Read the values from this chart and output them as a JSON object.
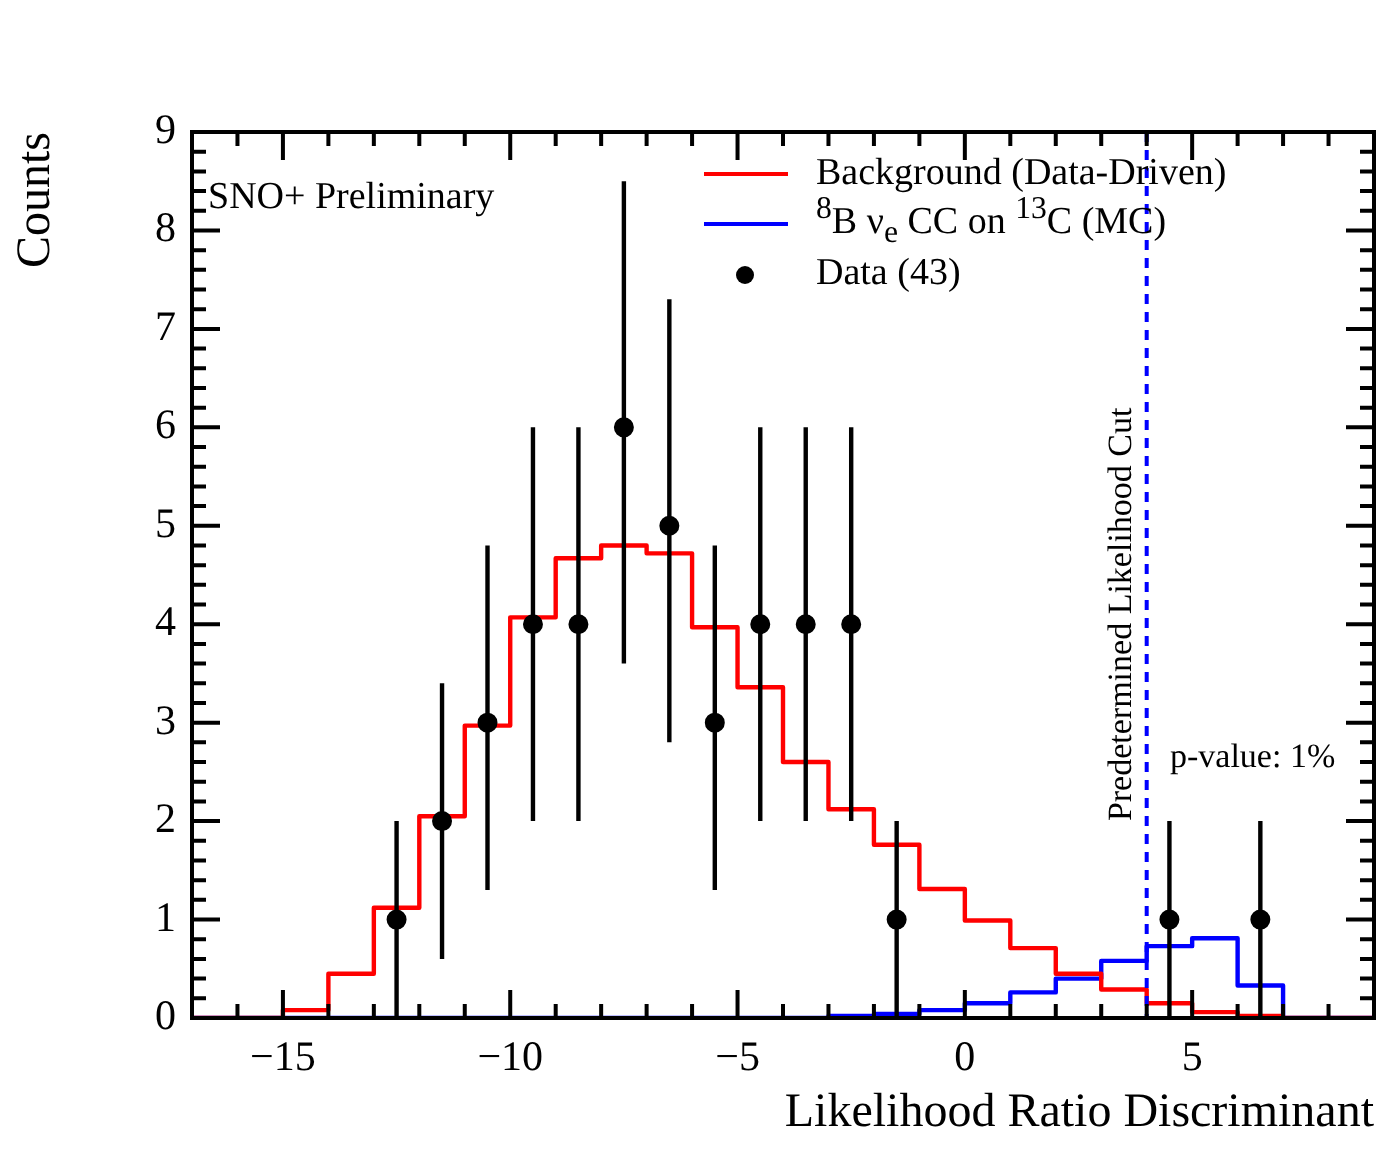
{
  "chart_data": {
    "type": "histogram",
    "xlabel": "Likelihood Ratio Discriminant",
    "ylabel": "Counts",
    "bins": [
      -17,
      -16,
      -15,
      -14,
      -13,
      -12,
      -11,
      -10,
      -9,
      -8,
      -7,
      -6,
      -5,
      -4,
      -3,
      -2,
      -1,
      0,
      1,
      2,
      3,
      4,
      5,
      6,
      7,
      8,
      9
    ],
    "series": [
      {
        "name": "Background (Data-Driven)",
        "color": "#ff0000",
        "values": [
          0,
          0,
          0.08,
          0.45,
          1.12,
          2.05,
          2.97,
          4.07,
          4.67,
          4.8,
          4.72,
          3.97,
          3.36,
          2.6,
          2.12,
          1.76,
          1.31,
          0.99,
          0.71,
          0.45,
          0.29,
          0.15,
          0.06,
          0.02,
          0,
          0
        ]
      },
      {
        "name": "$^{8}$B ν$_{e}$ CC on $^{13}$C (MC)",
        "color": "#0000ff",
        "values": [
          0,
          0,
          0,
          0,
          0,
          0,
          0,
          0,
          0,
          0,
          0,
          0,
          0,
          0,
          0.02,
          0.04,
          0.08,
          0.15,
          0.26,
          0.4,
          0.58,
          0.73,
          0.81,
          0.33,
          0,
          0
        ]
      },
      {
        "name": "Data (43)",
        "type": "scatter",
        "color": "#000000",
        "x": [
          -12.5,
          -11.5,
          -10.5,
          -9.5,
          -8.5,
          -7.5,
          -6.5,
          -5.5,
          -4.5,
          -3.5,
          -2.5,
          -1.5,
          4.5,
          6.5
        ],
        "values": [
          1,
          2,
          3,
          4,
          4,
          6,
          5,
          3,
          4,
          4,
          4,
          1,
          1,
          1
        ],
        "errors": [
          [
            0,
            2
          ],
          [
            0.6,
            3.4
          ],
          [
            1.3,
            4.8
          ],
          [
            2,
            6
          ],
          [
            2,
            6
          ],
          [
            3.6,
            8.5
          ],
          [
            2.8,
            7.3
          ],
          [
            1.3,
            4.8
          ],
          [
            2,
            6
          ],
          [
            2,
            6
          ],
          [
            2,
            6
          ],
          [
            0,
            2
          ],
          [
            0,
            2
          ],
          [
            0,
            2
          ]
        ]
      }
    ],
    "xlim": [
      -17,
      9
    ],
    "xticks": [
      {
        "value": -17,
        "label": null
      },
      {
        "value": -16,
        "label": null
      },
      -15,
      {
        "value": -14,
        "label": null
      },
      {
        "value": -13,
        "label": null
      },
      {
        "value": -12,
        "label": null
      },
      {
        "value": -11,
        "label": null
      },
      -10,
      {
        "value": -9,
        "label": null
      },
      {
        "value": -8,
        "label": null
      },
      {
        "value": -7,
        "label": null
      },
      {
        "value": -6,
        "label": null
      },
      -5,
      {
        "value": -4,
        "label": null
      },
      {
        "value": -3,
        "label": null
      },
      {
        "value": -2,
        "label": null
      },
      {
        "value": -1,
        "label": null
      },
      0,
      {
        "value": 1,
        "label": null
      },
      {
        "value": 2,
        "label": null
      },
      {
        "value": 3,
        "label": null
      },
      {
        "value": 4,
        "label": null
      },
      5,
      {
        "value": 6,
        "label": null
      },
      {
        "value": 7,
        "label": null
      },
      {
        "value": 8,
        "label": null
      }
    ],
    "ylim": [
      0,
      9
    ],
    "yticks": [
      0,
      {
        "value": 0.2,
        "label": null
      },
      {
        "value": 0.4,
        "label": null
      },
      {
        "value": 0.6,
        "label": null
      },
      {
        "value": 0.8,
        "label": null
      },
      1,
      {
        "value": 1.2,
        "label": null
      },
      {
        "value": 1.4,
        "label": null
      },
      {
        "value": 1.6,
        "label": null
      },
      {
        "value": 1.8,
        "label": null
      },
      2,
      {
        "value": 2.2,
        "label": null
      },
      {
        "value": 2.4,
        "label": null
      },
      {
        "value": 2.6,
        "label": null
      },
      {
        "value": 2.8,
        "label": null
      },
      3,
      {
        "value": 3.2,
        "label": null
      },
      {
        "value": 3.4,
        "label": null
      },
      {
        "value": 3.6,
        "label": null
      },
      {
        "value": 3.8,
        "label": null
      },
      4,
      {
        "value": 4.2,
        "label": null
      },
      {
        "value": 4.4,
        "label": null
      },
      {
        "value": 4.6,
        "label": null
      },
      {
        "value": 4.8,
        "label": null
      },
      5,
      {
        "value": 5.2,
        "label": null
      },
      {
        "value": 5.4,
        "label": null
      },
      {
        "value": 5.6,
        "label": null
      },
      {
        "value": 5.8,
        "label": null
      },
      6,
      {
        "value": 6.2,
        "label": null
      },
      {
        "value": 6.4,
        "label": null
      },
      {
        "value": 6.6,
        "label": null
      },
      {
        "value": 6.8,
        "label": null
      },
      7,
      {
        "value": 7.2,
        "label": null
      },
      {
        "value": 7.4,
        "label": null
      },
      {
        "value": 7.6,
        "label": null
      },
      {
        "value": 7.8,
        "label": null
      },
      8,
      {
        "value": 8.2,
        "label": null
      },
      {
        "value": 8.4,
        "label": null
      },
      {
        "value": 8.6,
        "label": null
      },
      {
        "value": 8.8,
        "label": null
      },
      9
    ],
    "ref_lines": [
      {
        "axis": "x",
        "value": 4,
        "label": "Predetermined Likelihood Cut",
        "color": "#0000ff",
        "line_style": "dashed"
      }
    ],
    "annotations": [
      "SNO+ Preliminary",
      "p-value: 1%"
    ],
    "legend": "top right",
    "marker": "circle"
  }
}
